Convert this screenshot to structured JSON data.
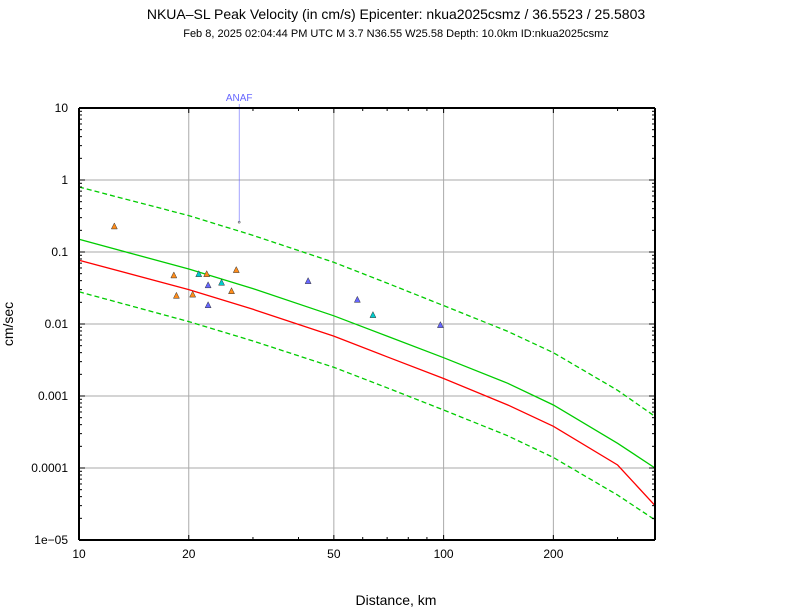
{
  "chart_data": {
    "type": "scatter",
    "title": "NKUA–SL Peak Velocity (in cm/s) Epicenter: nkua2025csmz / 36.5523 / 25.5803",
    "subtitle": "Feb  8, 2025 02:04:44 PM UTC    M 3.7    N36.55 W25.58    Depth: 10.0km    ID:nkua2025csmz",
    "xlabel": "Distance, km",
    "ylabel": "cm/sec",
    "x_scale": "log",
    "y_scale": "log",
    "xlim": [
      10,
      380
    ],
    "ylim": [
      1e-05,
      10
    ],
    "grid": true,
    "x_ticks": [
      {
        "value": 10,
        "label": "10"
      },
      {
        "value": 20,
        "label": "20"
      },
      {
        "value": 50,
        "label": "50"
      },
      {
        "value": 100,
        "label": "100"
      },
      {
        "value": 200,
        "label": "200"
      }
    ],
    "y_ticks": [
      {
        "value": 10,
        "label": "10"
      },
      {
        "value": 1,
        "label": "1"
      },
      {
        "value": 0.1,
        "label": "0.1"
      },
      {
        "value": 0.01,
        "label": "0.01"
      },
      {
        "value": 0.001,
        "label": "0.001"
      },
      {
        "value": 0.0001,
        "label": "0.0001"
      },
      {
        "value": 1e-05,
        "label": "1e−05"
      }
    ],
    "curves": [
      {
        "name": "prediction-red",
        "color": "#ff0000",
        "style": "solid",
        "x": [
          10,
          20,
          30,
          50,
          70,
          100,
          150,
          200,
          300,
          380
        ],
        "y": [
          0.077,
          0.03,
          0.016,
          0.0068,
          0.0035,
          0.00175,
          0.00075,
          0.00038,
          0.00011,
          3e-05
        ]
      },
      {
        "name": "prediction-green",
        "color": "#00cc00",
        "style": "solid",
        "x": [
          10,
          20,
          30,
          50,
          70,
          100,
          150,
          200,
          300,
          380
        ],
        "y": [
          0.15,
          0.058,
          0.031,
          0.013,
          0.0068,
          0.0034,
          0.0015,
          0.00075,
          0.00022,
          0.0001
        ]
      },
      {
        "name": "upper-bound-dashed",
        "color": "#00cc00",
        "style": "dashed",
        "x": [
          10,
          20,
          30,
          50,
          70,
          100,
          150,
          200,
          300,
          380
        ],
        "y": [
          0.8,
          0.32,
          0.17,
          0.072,
          0.037,
          0.018,
          0.0079,
          0.004,
          0.0012,
          0.00052
        ]
      },
      {
        "name": "lower-bound-dashed",
        "color": "#00cc00",
        "style": "dashed",
        "x": [
          10,
          20,
          30,
          50,
          70,
          100,
          150,
          200,
          300,
          380
        ],
        "y": [
          0.028,
          0.0108,
          0.0058,
          0.0025,
          0.0013,
          0.00064,
          0.00028,
          0.00014,
          4.2e-05,
          1.9e-05
        ]
      }
    ],
    "stations": [
      {
        "x": 12.5,
        "y": 0.23,
        "color": "#ff8c1a"
      },
      {
        "x": 18.2,
        "y": 0.048,
        "color": "#ff8c1a"
      },
      {
        "x": 18.5,
        "y": 0.025,
        "color": "#ff8c1a"
      },
      {
        "x": 20.5,
        "y": 0.026,
        "color": "#ff8c1a"
      },
      {
        "x": 21.3,
        "y": 0.05,
        "color": "#00cccc"
      },
      {
        "x": 22.4,
        "y": 0.05,
        "color": "#ff8c1a"
      },
      {
        "x": 22.6,
        "y": 0.035,
        "color": "#6666ff"
      },
      {
        "x": 22.6,
        "y": 0.0185,
        "color": "#6666ff"
      },
      {
        "x": 24.6,
        "y": 0.038,
        "color": "#00cccc"
      },
      {
        "x": 26.2,
        "y": 0.029,
        "color": "#ff8c1a"
      },
      {
        "x": 27.0,
        "y": 0.057,
        "color": "#ff8c1a"
      },
      {
        "x": 42.5,
        "y": 0.04,
        "color": "#6666ff"
      },
      {
        "x": 58.0,
        "y": 0.022,
        "color": "#6666ff"
      },
      {
        "x": 64.0,
        "y": 0.0135,
        "color": "#00cccc"
      },
      {
        "x": 98.0,
        "y": 0.0098,
        "color": "#6666ff"
      }
    ],
    "annotations": [
      {
        "label": "ANAF",
        "x": 27.5,
        "y": 0.26,
        "color": "#6666ff"
      }
    ]
  }
}
